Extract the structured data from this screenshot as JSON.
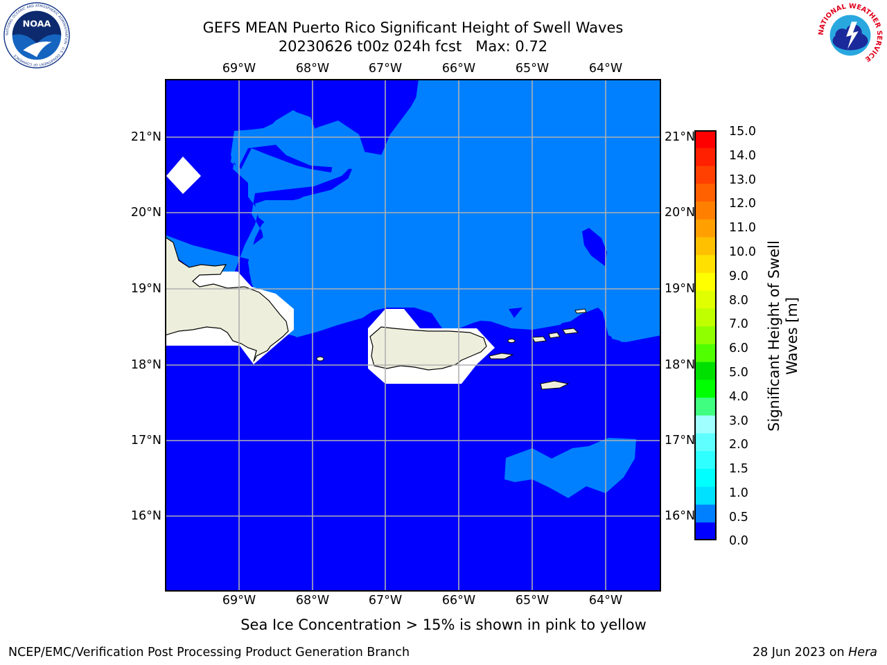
{
  "title": {
    "line1": "GEFS MEAN Puerto Rico Significant Height of Swell Waves",
    "line2": "20230626 t00z 024h fcst   Max: 0.72"
  },
  "map": {
    "lon_ticks": [
      "69°W",
      "68°W",
      "67°W",
      "66°W",
      "65°W",
      "64°W"
    ],
    "lat_ticks": [
      "21°N",
      "20°N",
      "19°N",
      "18°N",
      "17°N",
      "16°N"
    ],
    "extent": {
      "lon_min": -70.0,
      "lon_max": -63.25,
      "lat_min": 15.0,
      "lat_max": 21.75
    },
    "colors": {
      "ocean_low": "#0000ff",
      "ocean_mid": "#0080ff",
      "land": "#eeeedd",
      "grid": "#b0b0b0"
    }
  },
  "colorbar": {
    "title": "Significant Height of Swell Waves [m]",
    "labels": [
      "15.0",
      "14.0",
      "13.0",
      "12.0",
      "11.0",
      "10.0",
      "9.0",
      "8.0",
      "7.0",
      "6.0",
      "5.0",
      "4.0",
      "3.0",
      "2.0",
      "1.5",
      "1.0",
      "0.5",
      "0.0"
    ],
    "colors": [
      "#ff0000",
      "#ff2000",
      "#ff4000",
      "#ff6000",
      "#ff8000",
      "#ffa000",
      "#ffc000",
      "#ffe000",
      "#ffff00",
      "#e0ff00",
      "#c0ff00",
      "#90ff00",
      "#50ff00",
      "#00e000",
      "#00ff00",
      "#40ff80",
      "#a0ffff",
      "#60ffff",
      "#30ffff",
      "#00ffff",
      "#00e0ff",
      "#0080ff",
      "#0000ff"
    ]
  },
  "footer": {
    "ice_note": "Sea Ice Concentration > 15% is shown in pink to yellow",
    "left": "NCEP/EMC/Verification Post Processing Product Generation Branch",
    "right_date": "28 Jun 2023 on ",
    "right_host": "Hera"
  },
  "logos": {
    "noaa_text": "NOAA",
    "noaa_ring_text": "NATIONAL OCEANIC AND ATMOSPHERIC ADMINISTRATION · U.S. DEPARTMENT OF COMMERCE",
    "nws_ring_text": "NATIONAL WEATHER SERVICE"
  }
}
